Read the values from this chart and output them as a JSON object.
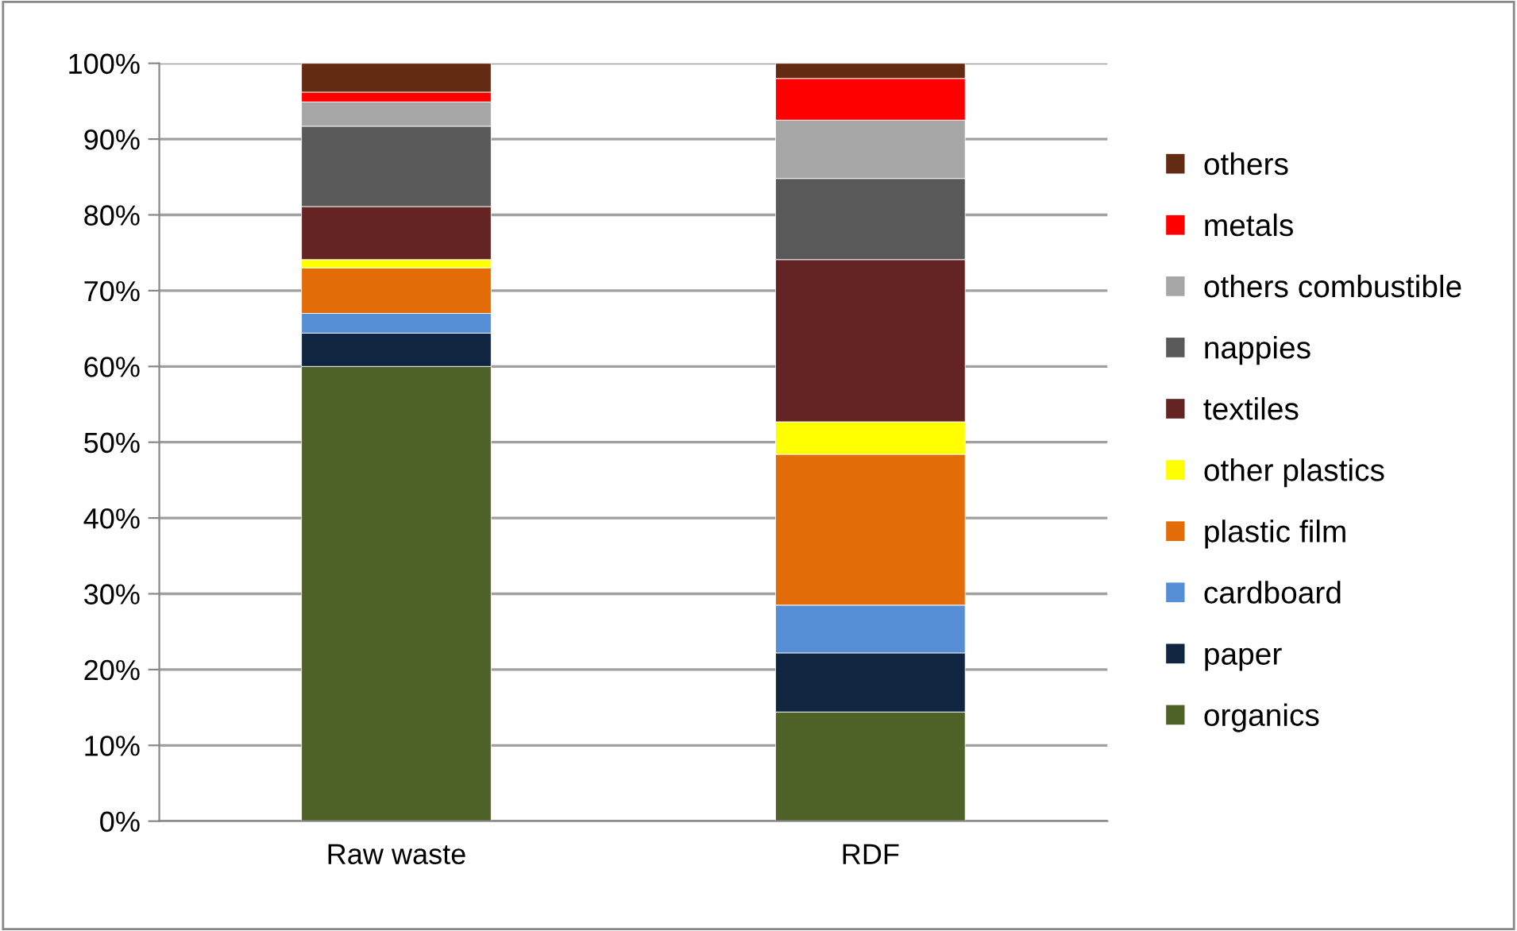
{
  "chart_data": {
    "type": "bar",
    "stacked": true,
    "categories": [
      "Raw waste",
      "RDF"
    ],
    "series": [
      {
        "name": "organics",
        "color": "#4f6228",
        "values": [
          60.0,
          14.4
        ]
      },
      {
        "name": "paper",
        "color": "#10253f",
        "values": [
          4.4,
          7.8
        ]
      },
      {
        "name": "cardboard",
        "color": "#558ed5",
        "values": [
          2.6,
          6.3
        ]
      },
      {
        "name": "plastic film",
        "color": "#e36c09",
        "values": [
          6.0,
          19.9
        ]
      },
      {
        "name": "other plastics",
        "color": "#ffff00",
        "values": [
          1.1,
          4.3
        ]
      },
      {
        "name": "textiles",
        "color": "#632423",
        "values": [
          7.0,
          21.4
        ]
      },
      {
        "name": "nappies",
        "color": "#595959",
        "values": [
          10.6,
          10.7
        ]
      },
      {
        "name": "others combustible",
        "color": "#a6a6a6",
        "values": [
          3.2,
          7.7
        ]
      },
      {
        "name": "metals",
        "color": "#ff0000",
        "values": [
          1.3,
          5.5
        ]
      },
      {
        "name": "others",
        "color": "#632c12",
        "values": [
          3.8,
          2.0
        ]
      }
    ],
    "ylim": [
      0,
      100
    ],
    "yticks": [
      {
        "value": 0,
        "label": "0%"
      },
      {
        "value": 10,
        "label": "10%"
      },
      {
        "value": 20,
        "label": "20%"
      },
      {
        "value": 30,
        "label": "30%"
      },
      {
        "value": 40,
        "label": "40%"
      },
      {
        "value": 50,
        "label": "50%"
      },
      {
        "value": 60,
        "label": "60%"
      },
      {
        "value": 70,
        "label": "70%"
      },
      {
        "value": 80,
        "label": "80%"
      },
      {
        "value": 90,
        "label": "90%"
      },
      {
        "value": 100,
        "label": "100%"
      }
    ],
    "grid": "y",
    "legend": "right"
  }
}
